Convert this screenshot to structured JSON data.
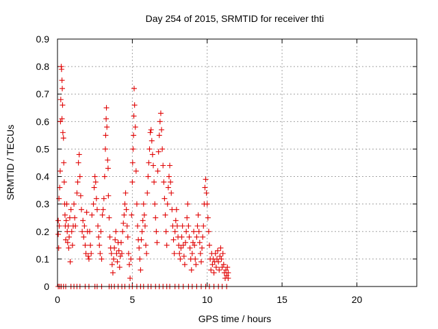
{
  "chart_data": {
    "type": "scatter",
    "title": "Day 254 of 2015, SRMTID for receiver thti",
    "xlabel": "GPS time / hours",
    "ylabel": "SRMTID / TECUs",
    "xlim": [
      0,
      24
    ],
    "ylim": [
      0,
      0.9
    ],
    "xticks": [
      "0",
      "5",
      "10",
      "15",
      "20"
    ],
    "xtick_values": [
      0,
      5,
      10,
      15,
      20
    ],
    "yticks": [
      "0",
      "0.1",
      "0.2",
      "0.3",
      "0.4",
      "0.5",
      "0.6",
      "0.7",
      "0.8",
      "0.9"
    ],
    "ytick_values": [
      0,
      0.1,
      0.2,
      0.3,
      0.4,
      0.5,
      0.6,
      0.7,
      0.8,
      0.9
    ],
    "grid": true,
    "marker": "plus",
    "color": "#e00000",
    "series": [
      {
        "points": [
          [
            0.05,
            0.24
          ],
          [
            0.05,
            0.19
          ],
          [
            0.08,
            0.14
          ],
          [
            0.1,
            0.32
          ],
          [
            0.12,
            0.22
          ],
          [
            0.15,
            0.36
          ],
          [
            0.18,
            0.42
          ],
          [
            0.2,
            0.6
          ],
          [
            0.22,
            0.68
          ],
          [
            0.25,
            0.8
          ],
          [
            0.27,
            0.79
          ],
          [
            0.3,
            0.75
          ],
          [
            0.32,
            0.72
          ],
          [
            0.34,
            0.66
          ],
          [
            0.3,
            0.61
          ],
          [
            0.36,
            0.56
          ],
          [
            0.4,
            0.54
          ],
          [
            0.42,
            0.45
          ],
          [
            0.45,
            0.38
          ],
          [
            0.48,
            0.3
          ],
          [
            0.5,
            0.26
          ],
          [
            0.52,
            0.22
          ],
          [
            0.55,
            0.17
          ],
          [
            0.58,
            0.24
          ],
          [
            0.62,
            0.3
          ],
          [
            0.65,
            0.2
          ],
          [
            0.68,
            0.16
          ],
          [
            0.72,
            0.22
          ],
          [
            0.75,
            0.14
          ],
          [
            0.78,
            0.18
          ],
          [
            0.82,
            0.25
          ],
          [
            0.85,
            0.09
          ],
          [
            0.9,
            0.28
          ],
          [
            0.95,
            0.2
          ],
          [
            1.0,
            0.15
          ],
          [
            1.05,
            0.22
          ],
          [
            1.1,
            0.3
          ],
          [
            1.15,
            0.25
          ],
          [
            1.2,
            0.22
          ],
          [
            1.3,
            0.34
          ],
          [
            1.35,
            0.38
          ],
          [
            1.4,
            0.45
          ],
          [
            1.45,
            0.48
          ],
          [
            1.5,
            0.4
          ],
          [
            1.55,
            0.33
          ],
          [
            1.6,
            0.28
          ],
          [
            1.65,
            0.2
          ],
          [
            1.7,
            0.24
          ],
          [
            1.75,
            0.18
          ],
          [
            1.8,
            0.22
          ],
          [
            1.85,
            0.15
          ],
          [
            1.9,
            0.12
          ],
          [
            1.95,
            0.27
          ],
          [
            2.0,
            0.2
          ],
          [
            2.05,
            0.11
          ],
          [
            2.1,
            0.1
          ],
          [
            2.15,
            0.2
          ],
          [
            2.2,
            0.15
          ],
          [
            2.25,
            0.12
          ],
          [
            2.3,
            0.26
          ],
          [
            2.4,
            0.3
          ],
          [
            2.45,
            0.36
          ],
          [
            2.5,
            0.4
          ],
          [
            2.55,
            0.38
          ],
          [
            2.6,
            0.32
          ],
          [
            2.65,
            0.28
          ],
          [
            2.7,
            0.22
          ],
          [
            2.75,
            0.18
          ],
          [
            2.8,
            0.15
          ],
          [
            2.85,
            0.12
          ],
          [
            2.9,
            0.2
          ],
          [
            2.95,
            0.1
          ],
          [
            3.0,
            0.26
          ],
          [
            3.05,
            0.28
          ],
          [
            3.1,
            0.32
          ],
          [
            3.15,
            0.4
          ],
          [
            3.2,
            0.5
          ],
          [
            3.22,
            0.55
          ],
          [
            3.25,
            0.61
          ],
          [
            3.27,
            0.65
          ],
          [
            3.3,
            0.58
          ],
          [
            3.35,
            0.46
          ],
          [
            3.38,
            0.43
          ],
          [
            3.4,
            0.33
          ],
          [
            3.45,
            0.25
          ],
          [
            3.5,
            0.18
          ],
          [
            3.55,
            0.14
          ],
          [
            3.6,
            0.12
          ],
          [
            3.65,
            0.08
          ],
          [
            3.7,
            0.05
          ],
          [
            3.75,
            0.1
          ],
          [
            3.8,
            0.14
          ],
          [
            3.85,
            0.17
          ],
          [
            3.9,
            0.2
          ],
          [
            3.95,
            0.12
          ],
          [
            4.0,
            0.09
          ],
          [
            4.05,
            0.16
          ],
          [
            4.1,
            0.13
          ],
          [
            4.15,
            0.07
          ],
          [
            4.2,
            0.11
          ],
          [
            4.25,
            0.16
          ],
          [
            4.3,
            0.12
          ],
          [
            4.35,
            0.2
          ],
          [
            4.4,
            0.23
          ],
          [
            4.45,
            0.26
          ],
          [
            4.5,
            0.3
          ],
          [
            4.55,
            0.34
          ],
          [
            4.6,
            0.28
          ],
          [
            4.65,
            0.22
          ],
          [
            4.7,
            0.18
          ],
          [
            4.75,
            0.12
          ],
          [
            4.8,
            0.08
          ],
          [
            4.85,
            0.03
          ],
          [
            4.9,
            0.1
          ],
          [
            4.95,
            0.26
          ],
          [
            5.0,
            0.38
          ],
          [
            5.02,
            0.45
          ],
          [
            5.05,
            0.5
          ],
          [
            5.08,
            0.55
          ],
          [
            5.1,
            0.62
          ],
          [
            5.12,
            0.72
          ],
          [
            5.15,
            0.66
          ],
          [
            5.2,
            0.58
          ],
          [
            5.25,
            0.42
          ],
          [
            5.3,
            0.3
          ],
          [
            5.35,
            0.22
          ],
          [
            5.4,
            0.17
          ],
          [
            5.45,
            0.14
          ],
          [
            5.5,
            0.1
          ],
          [
            5.55,
            0.06
          ],
          [
            5.6,
            0.17
          ],
          [
            5.65,
            0.2
          ],
          [
            5.7,
            0.24
          ],
          [
            5.75,
            0.3
          ],
          [
            5.8,
            0.26
          ],
          [
            5.85,
            0.22
          ],
          [
            5.9,
            0.15
          ],
          [
            5.95,
            0.12
          ],
          [
            6.0,
            0.34
          ],
          [
            6.05,
            0.4
          ],
          [
            6.1,
            0.45
          ],
          [
            6.15,
            0.5
          ],
          [
            6.2,
            0.56
          ],
          [
            6.25,
            0.57
          ],
          [
            6.3,
            0.53
          ],
          [
            6.35,
            0.48
          ],
          [
            6.4,
            0.44
          ],
          [
            6.45,
            0.38
          ],
          [
            6.5,
            0.3
          ],
          [
            6.55,
            0.25
          ],
          [
            6.6,
            0.2
          ],
          [
            6.65,
            0.16
          ],
          [
            6.7,
            0.42
          ],
          [
            6.75,
            0.49
          ],
          [
            6.8,
            0.55
          ],
          [
            6.85,
            0.6
          ],
          [
            6.9,
            0.63
          ],
          [
            6.95,
            0.57
          ],
          [
            7.0,
            0.5
          ],
          [
            7.05,
            0.44
          ],
          [
            7.1,
            0.38
          ],
          [
            7.15,
            0.32
          ],
          [
            7.2,
            0.26
          ],
          [
            7.25,
            0.2
          ],
          [
            7.3,
            0.15
          ],
          [
            7.35,
            0.3
          ],
          [
            7.4,
            0.36
          ],
          [
            7.45,
            0.4
          ],
          [
            7.5,
            0.44
          ],
          [
            7.55,
            0.38
          ],
          [
            7.6,
            0.34
          ],
          [
            7.65,
            0.28
          ],
          [
            7.7,
            0.22
          ],
          [
            7.75,
            0.17
          ],
          [
            7.8,
            0.12
          ],
          [
            7.85,
            0.2
          ],
          [
            7.9,
            0.24
          ],
          [
            7.95,
            0.28
          ],
          [
            8.0,
            0.22
          ],
          [
            8.05,
            0.18
          ],
          [
            8.1,
            0.15
          ],
          [
            8.15,
            0.12
          ],
          [
            8.2,
            0.1
          ],
          [
            8.25,
            0.14
          ],
          [
            8.3,
            0.18
          ],
          [
            8.35,
            0.22
          ],
          [
            8.4,
            0.15
          ],
          [
            8.45,
            0.11
          ],
          [
            8.5,
            0.08
          ],
          [
            8.55,
            0.16
          ],
          [
            8.6,
            0.2
          ],
          [
            8.65,
            0.25
          ],
          [
            8.7,
            0.3
          ],
          [
            8.75,
            0.22
          ],
          [
            8.8,
            0.18
          ],
          [
            8.85,
            0.14
          ],
          [
            8.9,
            0.1
          ],
          [
            8.95,
            0.06
          ],
          [
            9.0,
            0.12
          ],
          [
            9.05,
            0.16
          ],
          [
            9.1,
            0.2
          ],
          [
            9.15,
            0.15
          ],
          [
            9.2,
            0.1
          ],
          [
            9.25,
            0.08
          ],
          [
            9.3,
            0.18
          ],
          [
            9.35,
            0.22
          ],
          [
            9.4,
            0.26
          ],
          [
            9.45,
            0.2
          ],
          [
            9.5,
            0.16
          ],
          [
            9.55,
            0.12
          ],
          [
            9.6,
            0.09
          ],
          [
            9.65,
            0.14
          ],
          [
            9.7,
            0.18
          ],
          [
            9.75,
            0.22
          ],
          [
            9.8,
            0.3
          ],
          [
            9.85,
            0.36
          ],
          [
            9.9,
            0.39
          ],
          [
            9.95,
            0.34
          ],
          [
            10.0,
            0.3
          ],
          [
            10.05,
            0.25
          ],
          [
            10.1,
            0.2
          ],
          [
            10.15,
            0.15
          ],
          [
            10.2,
            0.1
          ],
          [
            10.25,
            0.06
          ],
          [
            10.3,
            0.12
          ],
          [
            10.35,
            0.08
          ],
          [
            10.4,
            0.1
          ],
          [
            10.45,
            0.05
          ],
          [
            10.5,
            0.09
          ],
          [
            10.55,
            0.12
          ],
          [
            10.6,
            0.07
          ],
          [
            10.65,
            0.1
          ],
          [
            10.7,
            0.13
          ],
          [
            10.75,
            0.09
          ],
          [
            10.8,
            0.06
          ],
          [
            10.85,
            0.11
          ],
          [
            10.9,
            0.14
          ],
          [
            10.95,
            0.1
          ],
          [
            11.0,
            0.07
          ],
          [
            11.05,
            0.12
          ],
          [
            11.1,
            0.08
          ],
          [
            11.15,
            0.05
          ],
          [
            11.2,
            0.03
          ],
          [
            11.25,
            0.06
          ],
          [
            11.3,
            0.04
          ],
          [
            11.35,
            0.07
          ],
          [
            11.4,
            0.05
          ],
          [
            11.4,
            0.03
          ]
        ]
      },
      {
        "points": [
          [
            0.05,
            0
          ],
          [
            0.15,
            0
          ],
          [
            0.25,
            0
          ],
          [
            0.4,
            0
          ],
          [
            0.55,
            0
          ],
          [
            0.9,
            0
          ],
          [
            1.1,
            0
          ],
          [
            1.3,
            0
          ],
          [
            1.5,
            0
          ],
          [
            1.85,
            0
          ],
          [
            2.1,
            0
          ],
          [
            2.5,
            0
          ],
          [
            2.65,
            0
          ],
          [
            2.95,
            0
          ],
          [
            3.45,
            0
          ],
          [
            3.6,
            0
          ],
          [
            3.8,
            0
          ],
          [
            4.05,
            0
          ],
          [
            4.3,
            0
          ],
          [
            4.5,
            0
          ],
          [
            4.8,
            0
          ],
          [
            5.0,
            0
          ],
          [
            5.3,
            0
          ],
          [
            5.55,
            0
          ],
          [
            5.75,
            0
          ],
          [
            6.05,
            0
          ],
          [
            6.25,
            0
          ],
          [
            6.55,
            0
          ],
          [
            6.8,
            0
          ],
          [
            7.05,
            0
          ],
          [
            7.3,
            0
          ],
          [
            7.5,
            0
          ],
          [
            7.85,
            0
          ],
          [
            8.1,
            0
          ],
          [
            8.4,
            0
          ],
          [
            8.75,
            0
          ],
          [
            9.0,
            0
          ],
          [
            9.3,
            0
          ],
          [
            9.6,
            0
          ],
          [
            9.9,
            0
          ],
          [
            10.15,
            0
          ],
          [
            10.45,
            0
          ],
          [
            10.75,
            0
          ],
          [
            11.0,
            0
          ],
          [
            11.3,
            0
          ]
        ]
      }
    ]
  }
}
